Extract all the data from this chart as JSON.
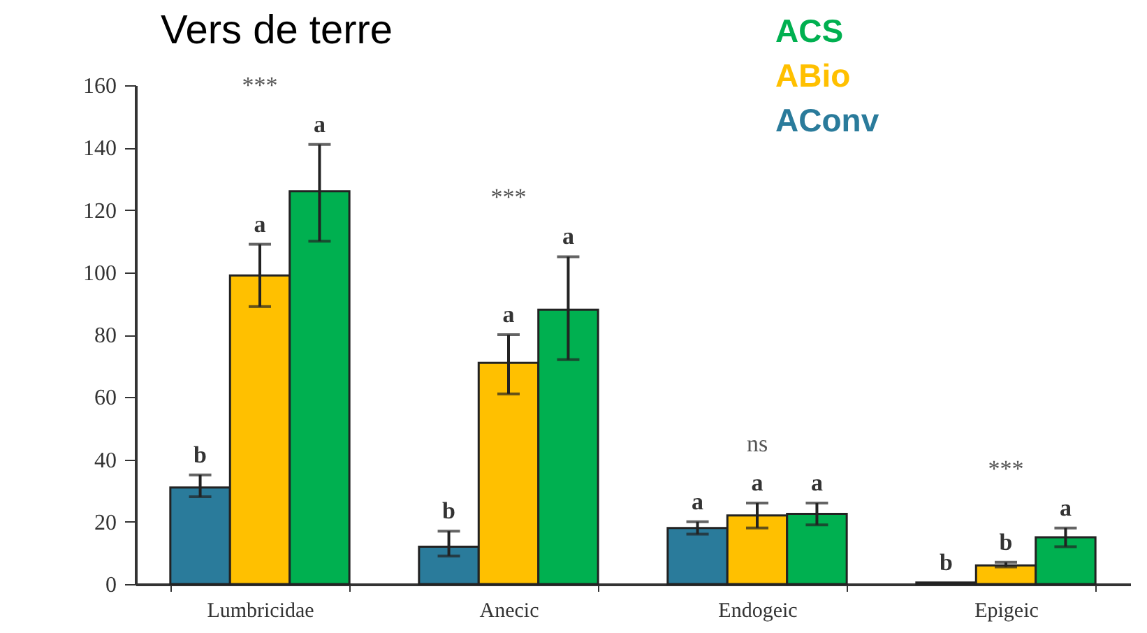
{
  "chart_data": {
    "type": "bar",
    "title": "Vers de terre",
    "categories": [
      "Lumbricidae",
      "Anecic",
      "Endogeic",
      "Epigeic"
    ],
    "series": [
      {
        "name": "AConv",
        "color": "#2a7b9b",
        "values": [
          31,
          12,
          18,
          0.5
        ],
        "errors": [
          [
            28,
            35
          ],
          [
            9,
            17
          ],
          [
            16,
            20
          ],
          null
        ],
        "value_labels": [
          "b",
          "b",
          "a",
          "b"
        ]
      },
      {
        "name": "ABio",
        "color": "#ffc000",
        "values": [
          99,
          71,
          22,
          6
        ],
        "errors": [
          [
            89,
            109
          ],
          [
            61,
            80
          ],
          [
            18,
            26
          ],
          [
            5.5,
            7
          ]
        ],
        "value_labels": [
          "a",
          "a",
          "a",
          "b"
        ]
      },
      {
        "name": "ACS",
        "color": "#00b050",
        "values": [
          126,
          88,
          22.5,
          15
        ],
        "errors": [
          [
            110,
            141
          ],
          [
            72,
            105
          ],
          [
            19,
            26
          ],
          [
            12,
            18
          ]
        ],
        "value_labels": [
          "a",
          "a",
          "a",
          "a"
        ]
      }
    ],
    "annotations": [
      "***",
      "***",
      "ns",
      "***"
    ],
    "ylim": [
      0,
      160
    ],
    "yticks": [
      0,
      20,
      40,
      60,
      80,
      100,
      120,
      140,
      160
    ],
    "legend": "top right"
  }
}
